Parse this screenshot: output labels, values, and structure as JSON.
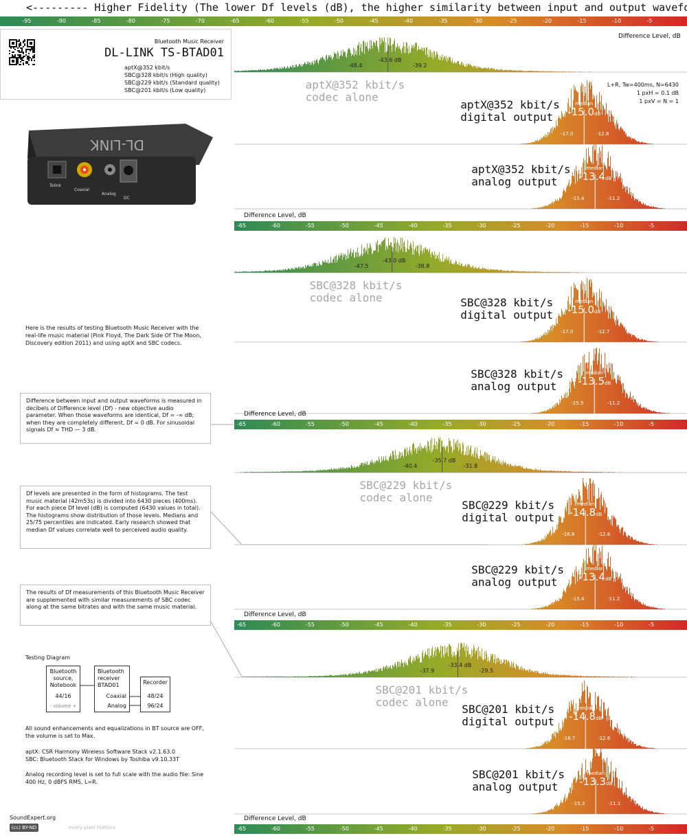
{
  "header": "<--------- Higher Fidelity (The lower Df levels (dB), the higher similarity between input and output waveforms)",
  "top_axis": {
    "ticks": [
      "-95",
      "-90",
      "-85",
      "-80",
      "-75",
      "-70",
      "-65",
      "-60",
      "-55",
      "-50",
      "-45",
      "-40",
      "-35",
      "-30",
      "-25",
      "-20",
      "-15",
      "-10",
      "-5"
    ],
    "xlim": [
      -99,
      0
    ]
  },
  "axis_label": "Difference  Level, dB",
  "axis_ticks": [
    "-65",
    "-60",
    "-55",
    "-50",
    "-45",
    "-40",
    "-35",
    "-30",
    "-25",
    "-20",
    "-15",
    "-10",
    "-5"
  ],
  "device": {
    "subtitle": "Bluetooth Music Receiver",
    "title": "DL-LINK TS-BTAD01",
    "codecs": [
      "aptX@352 kbit/s",
      "SBC@328 kbit/s (High quality)",
      "SBC@229 kbit/s (Standard quality)",
      "SBC@201 kbit/s (Low quality)"
    ],
    "photo_labels": {
      "toslink": "Tolink",
      "coaxial": "Coaxial",
      "analog": "Analog",
      "dc": "DC",
      "brand": "DL-LINK"
    }
  },
  "stats": [
    "L+R, Tw=400ms, N=6430",
    "1 pxH = 0.1 dB",
    "1 pxV = N = 1"
  ],
  "notes": {
    "intro": "Here is the results of testing Bluetooth Music Receiver with the real-life music material (Pink Floyd, The Dark Side Of The Moon, Discovery edition 2011) and using aptX and SBC codecs.",
    "box1": "Difference between input and output waveforms is measured in decibels of Difference level (Df) - new objective audio parameter. When those waveforms are identical, Df = -∞ dB; when they are completely different, Df = 0 dB. For sinusoidal signals Df ≈ THD — 3 dB.",
    "box2": "Df levels are presented in the form of histograms. The test music material (42m53s) is divided into 6430 pieces (400ms). For each piece Df level (dB) is computed (6430 values in total). The histograms show distribution of those levels. Medians and 25/75 percentiles are indicated. Early research showed that median Df values correlate well to perceived audio quality.",
    "box3": "The results of Df measurements of this Bluetooth Music Receiver are supplemented with similar measurements of SBC codec along at the same bitrates and with the same music material.",
    "settings": "All sound enhancements and equalizations in BT source are OFF, the volume is set to Max.",
    "stack1": "aptX: CSR Harmony Wireless Software Stack v2.1.63.0",
    "stack2": "SBC: Bluetooth Stack for Windows by Toshiba v9.10.33T",
    "analog": "Analog recording level is set to full scale with the audio file: Sine 400 Hz, 0 dBFS RMS, L=R."
  },
  "diagram": {
    "title": "Testing Diagram",
    "source_lines": [
      "Bluetooth",
      "source,",
      "Notebook"
    ],
    "source_fmt": "44/16",
    "volume": "- volume +",
    "receiver_lines": [
      "Bluetooth",
      "receiver",
      "BTAD01"
    ],
    "coaxial": "Coaxial",
    "analog": "Analog",
    "recorder": "Recorder",
    "fmt1": "48/24",
    "fmt2": "96/24"
  },
  "footer": {
    "brand": "SoundExpert.org",
    "license": "(cc) BY-ND",
    "motto": "every pixel matters"
  },
  "median_word": "median",
  "unit": "dB",
  "chart_data": {
    "type": "histogram",
    "xlabel": "Difference  Level, dB",
    "xlim": [
      -66,
      0
    ],
    "panels": [
      {
        "label_lines": [
          "aptX@352 kbit/s",
          "codec alone"
        ],
        "kind": "codec",
        "median": -43.6,
        "p25": -48.4,
        "p75": -39.2
      },
      {
        "label_lines": [
          "aptX@352 kbit/s",
          "digital output"
        ],
        "kind": "device",
        "median": -15.0,
        "p25": -17.0,
        "p75": -12.8
      },
      {
        "label_lines": [
          "aptX@352 kbit/s",
          "analog output"
        ],
        "kind": "device",
        "median": -13.4,
        "p25": -15.4,
        "p75": -11.2
      },
      {
        "label_lines": [
          "SBC@328 kbit/s",
          "codec alone"
        ],
        "kind": "codec",
        "median": -43.0,
        "p25": -47.5,
        "p75": -38.8
      },
      {
        "label_lines": [
          "SBC@328 kbit/s",
          "digital output"
        ],
        "kind": "device",
        "median": -15.0,
        "p25": -17.0,
        "p75": -12.7
      },
      {
        "label_lines": [
          "SBC@328 kbit/s",
          "analog output"
        ],
        "kind": "device",
        "median": -13.5,
        "p25": -15.5,
        "p75": -11.2
      },
      {
        "label_lines": [
          "SBC@229 kbit/s",
          "codec alone"
        ],
        "kind": "codec",
        "median": -35.7,
        "p25": -40.4,
        "p75": -31.8
      },
      {
        "label_lines": [
          "SBC@229 kbit/s",
          "digital output"
        ],
        "kind": "device",
        "median": -14.8,
        "p25": -16.8,
        "p75": -12.6
      },
      {
        "label_lines": [
          "SBC@229 kbit/s",
          "analog output"
        ],
        "kind": "device",
        "median": -13.4,
        "p25": -15.4,
        "p75": -11.2
      },
      {
        "label_lines": [
          "SBC@201 kbit/s",
          "codec alone"
        ],
        "kind": "codec",
        "median": -33.4,
        "p25": -37.9,
        "p75": -29.5
      },
      {
        "label_lines": [
          "SBC@201 kbit/s",
          "digital output"
        ],
        "kind": "device",
        "median": -14.8,
        "p25": -16.7,
        "p75": -12.6
      },
      {
        "label_lines": [
          "SBC@201 kbit/s",
          "analog output"
        ],
        "kind": "device",
        "median": -13.3,
        "p25": -15.3,
        "p75": -11.1
      }
    ]
  }
}
